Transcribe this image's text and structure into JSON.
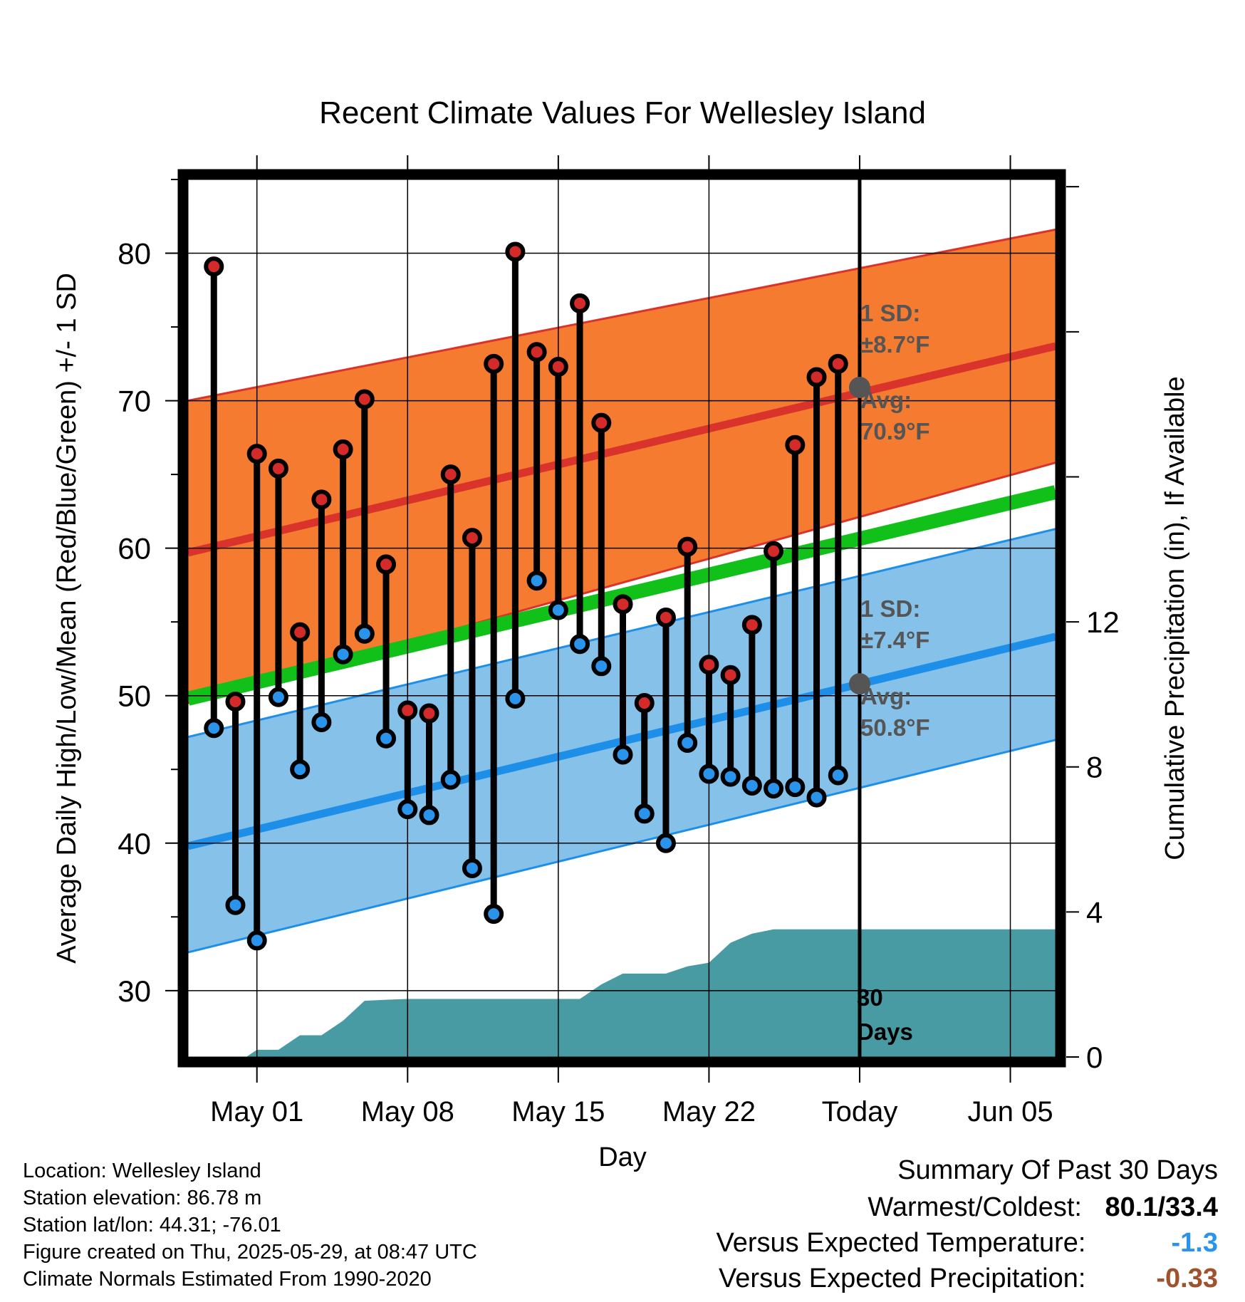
{
  "chart_data": {
    "type": "line",
    "title": "Recent Climate Values For Wellesley Island",
    "xlabel": "Day",
    "ylabel": "Average Daily High/Low/Mean (Red/Blue/Green) +/- 1 SD",
    "y2label": "Cumulative Precipitation (in), If Available",
    "x_ticks": [
      {
        "day": 3,
        "label": "May 01"
      },
      {
        "day": 10,
        "label": "May 08"
      },
      {
        "day": 17,
        "label": "May 15"
      },
      {
        "day": 24,
        "label": "May 22"
      },
      {
        "day": 31,
        "label": "Today"
      },
      {
        "day": 38,
        "label": "Jun 05"
      }
    ],
    "xlim": [
      -0.2,
      40.1
    ],
    "ylim": [
      25.5,
      85
    ],
    "y_ticks": [
      30,
      40,
      50,
      60,
      70,
      80
    ],
    "y2lim": [
      0,
      24.2
    ],
    "y2_ticks": [
      0,
      4,
      8,
      12
    ],
    "grid": true,
    "today_day": 31,
    "normals": {
      "high_avg": {
        "start": 59.7,
        "end": 73.7
      },
      "high_upper": {
        "start": 70.0,
        "end": 81.6
      },
      "high_lower": {
        "start": 49.5,
        "end": 65.8
      },
      "low_avg": {
        "start": 39.8,
        "end": 54.0
      },
      "low_upper": {
        "start": 47.2,
        "end": 61.3
      },
      "low_lower": {
        "start": 32.6,
        "end": 47.0
      },
      "mean_avg": {
        "start": 49.8,
        "end": 63.8
      }
    },
    "high_sd_label": "1 SD:",
    "high_sd_value": "±8.7°F",
    "high_avg_label": "Avg:",
    "high_avg_value": "70.9°F",
    "low_sd_label": "1 SD:",
    "low_sd_value": "±7.4°F",
    "low_avg_label": "Avg:",
    "low_avg_value": "50.8°F",
    "today_high_avg": 70.9,
    "today_low_avg": 50.8,
    "days_label_1": "30",
    "days_label_2": "Days",
    "daily": {
      "days": [
        1,
        2,
        3,
        4,
        5,
        6,
        7,
        8,
        9,
        10,
        11,
        12,
        13,
        14,
        15,
        16,
        17,
        18,
        19,
        20,
        21,
        22,
        23,
        24,
        25,
        26,
        27,
        28,
        29,
        30
      ],
      "high": [
        79.1,
        49.6,
        66.4,
        65.4,
        54.3,
        63.3,
        66.7,
        70.1,
        58.9,
        49.0,
        48.8,
        65.0,
        60.7,
        72.5,
        80.1,
        73.3,
        72.3,
        76.6,
        68.5,
        56.2,
        49.5,
        55.3,
        60.1,
        52.1,
        51.4,
        54.8,
        59.8,
        67.0,
        71.6,
        72.5
      ],
      "low": [
        47.8,
        35.8,
        33.4,
        49.9,
        45.0,
        48.2,
        52.8,
        54.2,
        47.1,
        42.3,
        41.9,
        44.3,
        38.3,
        35.2,
        49.8,
        57.8,
        55.8,
        53.5,
        52.0,
        46.0,
        42.0,
        40.0,
        46.8,
        44.7,
        44.5,
        43.9,
        43.7,
        43.8,
        43.1,
        44.6
      ]
    },
    "precipitation": {
      "days": [
        -0.2,
        2.5,
        3.0,
        4.0,
        5.0,
        6.0,
        7.0,
        8.0,
        9.0,
        10.0,
        11.0,
        12.0,
        13.0,
        14.0,
        15.0,
        16.0,
        17.0,
        18.0,
        19.0,
        20.0,
        21.0,
        22.0,
        23.0,
        24.0,
        25.0,
        26.0,
        27.0,
        28.0,
        29.0,
        30.0,
        31.0,
        40.1
      ],
      "cumulative": [
        0,
        0,
        0.2,
        0.2,
        0.6,
        0.6,
        1.0,
        1.55,
        1.58,
        1.6,
        1.6,
        1.6,
        1.6,
        1.6,
        1.6,
        1.6,
        1.6,
        1.6,
        2.0,
        2.3,
        2.3,
        2.3,
        2.5,
        2.6,
        3.15,
        3.4,
        3.52,
        3.52,
        3.52,
        3.52,
        3.52,
        3.52
      ]
    },
    "colors": {
      "high_band": "#f47b30",
      "high_line": "#d9332b",
      "low_band": "#86c1e9",
      "low_line": "#1e8fe8",
      "mean_line": "#11c11a",
      "precip": "#489aa3",
      "high_dot": "#d42a2a",
      "low_dot": "#2a93ec",
      "annotation": "#555555"
    }
  },
  "info": {
    "location": "Location: Wellesley Island",
    "elevation": "Station elevation: 86.78 m",
    "latlon": "Station lat/lon: 44.31; -76.01",
    "created": "Figure created on Thu, 2025-05-29, at 08:47 UTC",
    "normals": "Climate Normals Estimated From 1990-2020"
  },
  "summary": {
    "heading": "Summary Of Past 30 Days",
    "warmest_label": "Warmest/Coldest:",
    "warmest_value": "80.1/33.4",
    "temp_label": "Versus Expected Temperature:",
    "temp_value": "-1.3",
    "temp_color": "#2a93ec",
    "precip_label": "Versus Expected Precipitation:",
    "precip_value": "-0.33",
    "precip_color": "#a0522d"
  }
}
